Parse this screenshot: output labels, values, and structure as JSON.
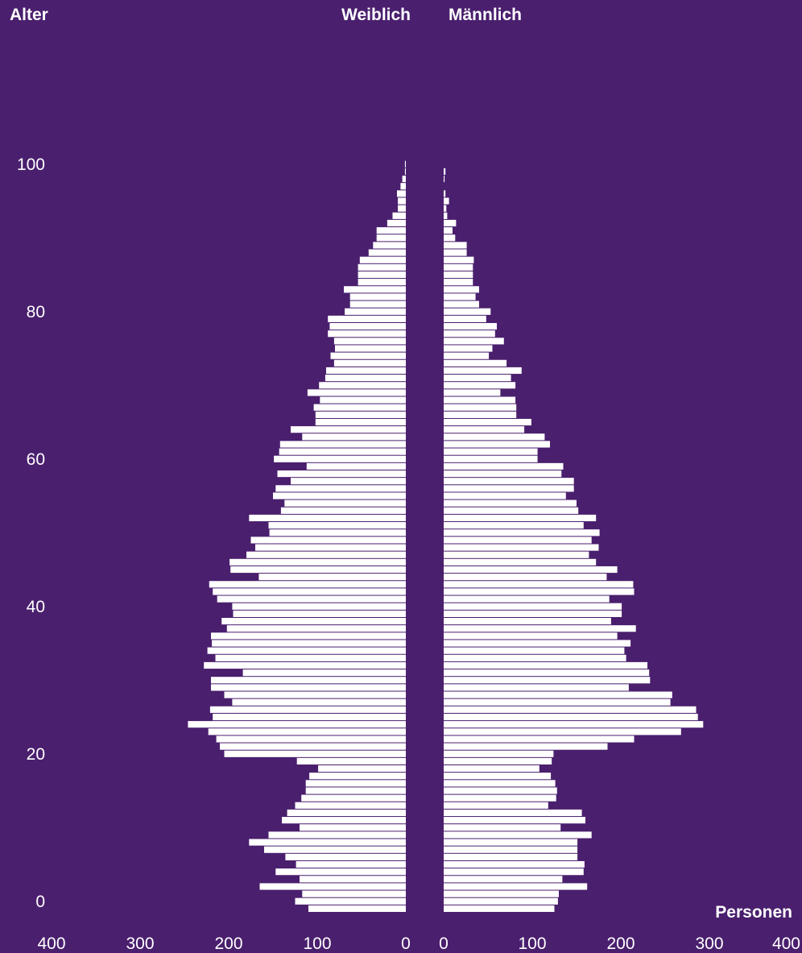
{
  "header": {
    "age_label": "Alter",
    "female_label": "Weiblich",
    "male_label": "Männlich"
  },
  "axis": {
    "unit_label": "Personen",
    "left_ticks": [
      "400",
      "300",
      "200",
      "100",
      "0"
    ],
    "right_ticks": [
      "0",
      "100",
      "200",
      "300",
      "400"
    ],
    "age_ticks": [
      "0",
      "20",
      "40",
      "60",
      "80",
      "100"
    ]
  },
  "chart_data": {
    "type": "bar",
    "orientation": "horizontal",
    "layout": "population-pyramid",
    "xlim": [
      0,
      400
    ],
    "ylim": [
      0,
      100
    ],
    "age_min": 0,
    "bar_color": "#ffffff",
    "background_color": "#4a1f6e",
    "series": [
      {
        "name": "Weiblich",
        "side": "left",
        "values": [
          110,
          125,
          117,
          165,
          120,
          147,
          124,
          136,
          160,
          177,
          155,
          120,
          140,
          134,
          125,
          118,
          113,
          113,
          109,
          99,
          123,
          205,
          210,
          214,
          223,
          246,
          218,
          221,
          196,
          205,
          220,
          220,
          184,
          228,
          215,
          224,
          219,
          220,
          202,
          208,
          195,
          196,
          213,
          218,
          222,
          166,
          198,
          199,
          180,
          170,
          175,
          154,
          155,
          177,
          141,
          137,
          150,
          147,
          130,
          145,
          112,
          149,
          143,
          142,
          117,
          130,
          102,
          102,
          104,
          97,
          111,
          98,
          91,
          90,
          81,
          85,
          80,
          81,
          88,
          86,
          88,
          69,
          63,
          63,
          70,
          54,
          54,
          54,
          52,
          42,
          37,
          33,
          33,
          21,
          15,
          9,
          9,
          10,
          6,
          4,
          1,
          1,
          0
        ]
      },
      {
        "name": "Männlich",
        "side": "right",
        "values": [
          125,
          129,
          130,
          162,
          134,
          158,
          159,
          151,
          151,
          151,
          167,
          132,
          160,
          156,
          118,
          127,
          128,
          126,
          121,
          108,
          122,
          124,
          185,
          215,
          268,
          293,
          287,
          285,
          256,
          258,
          209,
          233,
          232,
          230,
          206,
          204,
          211,
          196,
          217,
          189,
          201,
          201,
          187,
          215,
          214,
          184,
          196,
          172,
          164,
          175,
          167,
          176,
          158,
          172,
          152,
          150,
          138,
          147,
          147,
          133,
          135,
          106,
          106,
          120,
          114,
          91,
          99,
          82,
          82,
          81,
          64,
          81,
          76,
          88,
          71,
          51,
          55,
          68,
          58,
          60,
          48,
          53,
          40,
          36,
          40,
          33,
          33,
          33,
          34,
          26,
          26,
          13,
          10,
          14,
          4,
          3,
          6,
          2,
          0,
          1,
          2,
          0,
          0
        ]
      }
    ]
  }
}
